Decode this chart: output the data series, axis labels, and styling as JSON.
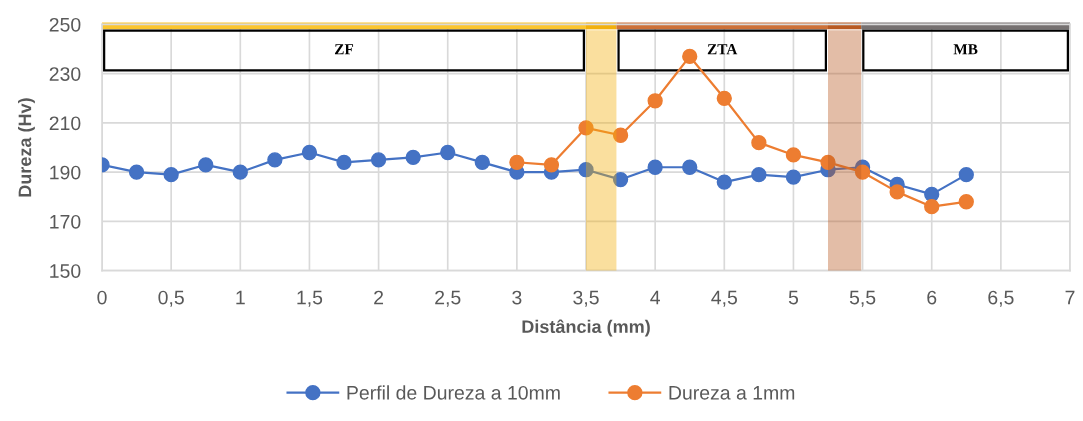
{
  "chart_data": {
    "type": "line",
    "xlabel": "Distância (mm)",
    "ylabel": "Dureza (Hv)",
    "series": [
      {
        "name": "Perfil de Dureza a 10mm",
        "color": "#4472c4",
        "x": [
          0,
          0.25,
          0.5,
          0.75,
          1,
          1.25,
          1.5,
          1.75,
          2,
          2.25,
          2.5,
          2.75,
          3,
          3.25,
          3.5,
          3.75,
          4,
          4.25,
          4.5,
          4.75,
          5,
          5.25,
          5.5,
          5.75,
          6,
          6.25
        ],
        "values": [
          193,
          190,
          189,
          193,
          190,
          195,
          198,
          194,
          195,
          196,
          198,
          194,
          190,
          190,
          191,
          187,
          192,
          192,
          186,
          189,
          188,
          191,
          192,
          185,
          181,
          189
        ]
      },
      {
        "name": "Dureza a 1mm",
        "color": "#ed7d31",
        "x": [
          3,
          3.25,
          3.5,
          3.75,
          4,
          4.25,
          4.5,
          4.75,
          5,
          5.25,
          5.5,
          5.75,
          6,
          6.25
        ],
        "values": [
          194,
          193,
          208,
          205,
          219,
          237,
          220,
          202,
          197,
          194,
          190,
          182,
          176,
          178
        ]
      }
    ],
    "xlim": [
      0,
      7
    ],
    "xticks": [
      0,
      {
        "value": 0.5,
        "label": "0,5"
      },
      1,
      {
        "value": 1.5,
        "label": "1,5"
      },
      2,
      {
        "value": 2.5,
        "label": "2,5"
      },
      3,
      {
        "value": 3.5,
        "label": "3,5"
      },
      4,
      {
        "value": 4.5,
        "label": "4,5"
      },
      5,
      {
        "value": 5.5,
        "label": "5,5"
      },
      6,
      {
        "value": 6.5,
        "label": "6,5"
      },
      7
    ],
    "ylim": [
      150,
      250
    ],
    "yticks": [
      150,
      170,
      190,
      210,
      230,
      250
    ],
    "grid": true,
    "legend": "bottom",
    "marker": "circle",
    "line_style": "solid",
    "bands": [
      {
        "axis": "x",
        "from": 3.5,
        "to": 3.72,
        "color": "#f2b00c"
      },
      {
        "axis": "x",
        "from": 5.25,
        "to": 5.49,
        "color": "#b85a22"
      }
    ],
    "annotations": [
      "ZF",
      "ZTA",
      "MB"
    ]
  }
}
